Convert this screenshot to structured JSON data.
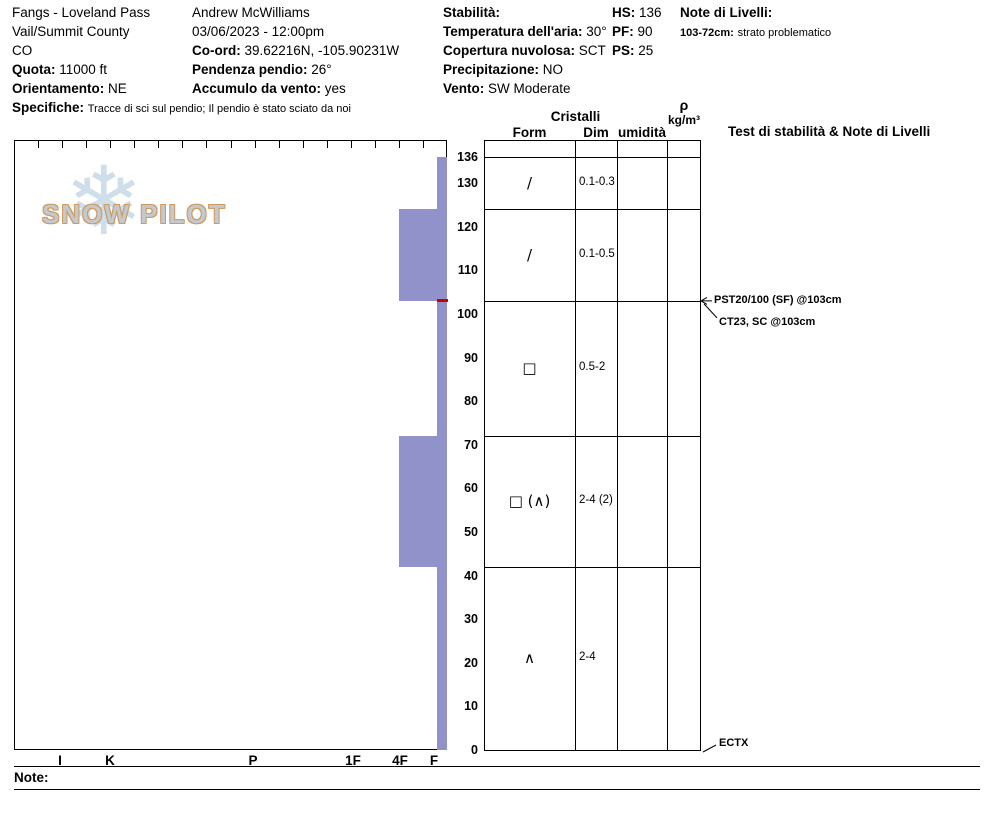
{
  "header": {
    "col1": {
      "pit_name": "Fangs - Loveland Pass",
      "region": "Vail/Summit County",
      "state": "CO",
      "quota_label": "Quota:",
      "quota_value": "11000 ft",
      "orient_label": "Orientamento:",
      "orient_value": "NE",
      "spec_label": "Specifiche:",
      "spec_value": "Tracce di sci sul pendio;  Il pendio è stato sciato da noi"
    },
    "col2": {
      "observer": "Andrew McWilliams",
      "datetime": "03/06/2023 - 12:00pm",
      "coord_label": "Co-ord:",
      "coord_value": "39.62216N, -105.90231W",
      "slope_label": "Pendenza pendio:",
      "slope_value": "26°",
      "windload_label": "Accumulo da vento:",
      "windload_value": "yes"
    },
    "col3": {
      "stab_label": "Stabilità:",
      "temp_label": "Temperatura dell'aria:",
      "temp_value": "30°",
      "cloud_label": "Copertura nuvolosa:",
      "cloud_value": "SCT",
      "precip_label": "Precipitazione:",
      "precip_value": "NO",
      "wind_label": "Vento:",
      "wind_value": "SW Moderate",
      "hs_label": "HS:",
      "hs_value": "136",
      "pf_label": "PF:",
      "pf_value": "90",
      "ps_label": "PS:",
      "ps_value": "25"
    },
    "col4": {
      "notes_label": "Note di Livelli:",
      "layer_note_label": "103-72cm:",
      "layer_note_value": "strato problematico"
    }
  },
  "logo": {
    "text": "SNOW PILOT"
  },
  "chart_data": {
    "type": "snow-profile",
    "depth_total_cm": 136,
    "depth_ticks": [
      136,
      130,
      120,
      110,
      100,
      90,
      80,
      70,
      60,
      50,
      40,
      30,
      20,
      10,
      0
    ],
    "hardness_axis": [
      "I",
      "K",
      "P",
      "1F",
      "4F",
      "F"
    ],
    "layers": [
      {
        "top_cm": 136,
        "bottom_cm": 124,
        "hardness": "F",
        "form": "/",
        "dim": "0.1-0.3",
        "wetness": ""
      },
      {
        "top_cm": 124,
        "bottom_cm": 103,
        "hardness": "4F",
        "form": "/",
        "dim": "0.1-0.5",
        "wetness": ""
      },
      {
        "top_cm": 103,
        "bottom_cm": 72,
        "hardness": "F",
        "form": "□",
        "dim": "0.5-2",
        "wetness": ""
      },
      {
        "top_cm": 72,
        "bottom_cm": 42,
        "hardness": "4F",
        "form": "□ (∧)",
        "dim": "2-4 (2)",
        "wetness": ""
      },
      {
        "top_cm": 42,
        "bottom_cm": 0,
        "hardness": "F",
        "form": "∧",
        "dim": "2-4",
        "wetness": ""
      }
    ],
    "problem_layer_cm": 103,
    "table_headers": {
      "cristalli": "Cristalli",
      "form": "Form",
      "dim": "Dim",
      "umidita": "umidità",
      "rho": "ρ",
      "rho_units": "kg/m³",
      "tests": "Test di stabilità & Note di Livelli"
    },
    "stability_tests": [
      {
        "depth_cm": 103,
        "text": "PST20/100 (SF) @103cm"
      },
      {
        "depth_cm": 103,
        "text": "CT23, SC @103cm"
      },
      {
        "depth_cm": 0,
        "text": "ECTX"
      }
    ],
    "colors": {
      "bar": "#9292cb",
      "problem_line": "#cc0000"
    }
  },
  "footer": {
    "note_label": "Note:"
  }
}
